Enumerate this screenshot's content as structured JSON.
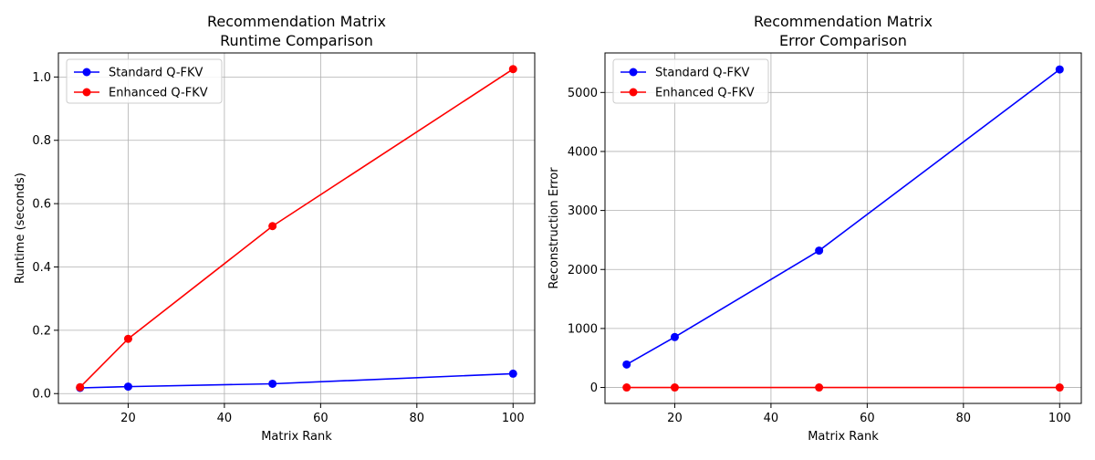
{
  "chart_data": [
    {
      "type": "line",
      "title_lines": [
        "Recommendation Matrix",
        "Runtime Comparison"
      ],
      "xlabel": "Matrix Rank",
      "ylabel": "Runtime (seconds)",
      "x": [
        10,
        20,
        50,
        100
      ],
      "xlim": [
        5.5,
        104.5
      ],
      "ylim": [
        -0.031,
        1.076
      ],
      "xticks": [
        20,
        40,
        60,
        80,
        100
      ],
      "xtick_labels": [
        "20",
        "40",
        "60",
        "80",
        "100"
      ],
      "yticks": [
        0.0,
        0.2,
        0.4,
        0.6,
        0.8,
        1.0
      ],
      "ytick_labels": [
        "0.0",
        "0.2",
        "0.4",
        "0.6",
        "0.8",
        "1.0"
      ],
      "grid": true,
      "legend_position": "upper-left",
      "series": [
        {
          "name": "Standard Q-FKV",
          "color": "#0000ff",
          "values": [
            0.018,
            0.022,
            0.031,
            0.063
          ]
        },
        {
          "name": "Enhanced Q-FKV",
          "color": "#ff0000",
          "values": [
            0.02,
            0.173,
            0.529,
            1.025
          ]
        }
      ]
    },
    {
      "type": "line",
      "title_lines": [
        "Recommendation Matrix",
        "Error Comparison"
      ],
      "xlabel": "Matrix Rank",
      "ylabel": "Reconstruction Error",
      "x": [
        10,
        20,
        50,
        100
      ],
      "xlim": [
        5.5,
        104.5
      ],
      "ylim": [
        -270,
        5670
      ],
      "xticks": [
        20,
        40,
        60,
        80,
        100
      ],
      "xtick_labels": [
        "20",
        "40",
        "60",
        "80",
        "100"
      ],
      "yticks": [
        0,
        1000,
        2000,
        3000,
        4000,
        5000
      ],
      "ytick_labels": [
        "0",
        "1000",
        "2000",
        "3000",
        "4000",
        "5000"
      ],
      "grid": true,
      "legend_position": "upper-left",
      "series": [
        {
          "name": "Standard Q-FKV",
          "color": "#0000ff",
          "values": [
            390,
            855,
            2320,
            5390
          ]
        },
        {
          "name": "Enhanced Q-FKV",
          "color": "#ff0000",
          "values": [
            0,
            0,
            0,
            0
          ]
        }
      ]
    }
  ]
}
